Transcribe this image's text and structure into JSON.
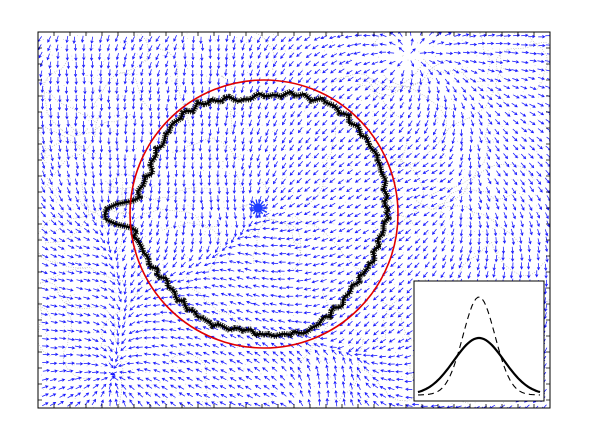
{
  "figure": {
    "background_color": "#ffffff",
    "frame_color": "#000000",
    "field_arrow_color": "#1414ff",
    "texture_color": "#9a9a9a",
    "contour_color": "#000000",
    "circle_color": "#e00000",
    "center_marker_color": "#1e3cff"
  },
  "inset": {
    "solid_curve_color": "#000000",
    "dashed_curve_color": "#000000"
  }
}
